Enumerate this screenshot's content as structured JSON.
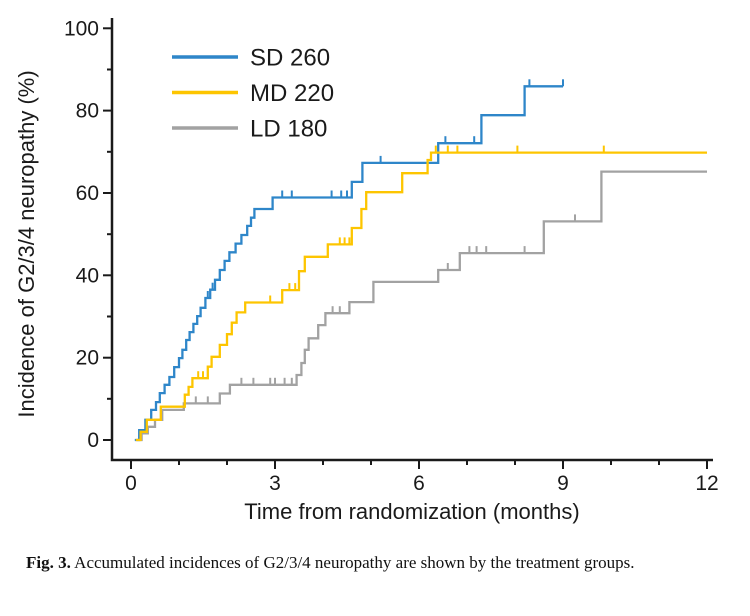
{
  "figure": {
    "caption_label": "Fig. 3.",
    "caption_text": "Accumulated incidences of G2/3/4 neuropathy are shown by the treatment groups."
  },
  "chart_data": {
    "type": "line",
    "subtype": "cumulative-incidence-step",
    "title": "",
    "xlabel": "Time from randomization (months)",
    "ylabel": "Incidence of G2/3/4 neuropathy (%)",
    "xlim": [
      0,
      12
    ],
    "ylim": [
      0,
      100
    ],
    "grid": false,
    "legend_position": "upper-left-inside",
    "x_ticks_major": [
      0,
      3,
      6,
      9,
      12
    ],
    "x_ticks_minor": [
      1,
      2,
      4,
      5,
      7,
      8,
      10,
      11
    ],
    "y_ticks_major": [
      0,
      20,
      40,
      60,
      80,
      100
    ],
    "y_ticks_minor": [
      10,
      30,
      50,
      70,
      90
    ],
    "axis_color": "#1a1a1a",
    "series": [
      {
        "name": "SD 260",
        "color": "#2e86c9",
        "end_t": 9.0,
        "points": [
          [
            0.08,
            0
          ],
          [
            0.17,
            2.4
          ],
          [
            0.3,
            4.9
          ],
          [
            0.42,
            7.3
          ],
          [
            0.52,
            9.2
          ],
          [
            0.6,
            11.4
          ],
          [
            0.7,
            13.4
          ],
          [
            0.8,
            15.3
          ],
          [
            0.9,
            17.7
          ],
          [
            1.0,
            19.9
          ],
          [
            1.07,
            21.9
          ],
          [
            1.15,
            24.3
          ],
          [
            1.22,
            26.2
          ],
          [
            1.3,
            28.2
          ],
          [
            1.38,
            30.1
          ],
          [
            1.45,
            32.1
          ],
          [
            1.55,
            34.5
          ],
          [
            1.65,
            36.5
          ],
          [
            1.75,
            38.9
          ],
          [
            1.85,
            41.3
          ],
          [
            1.95,
            43.5
          ],
          [
            2.05,
            45.6
          ],
          [
            2.18,
            47.7
          ],
          [
            2.3,
            49.8
          ],
          [
            2.42,
            52.0
          ],
          [
            2.5,
            54.0
          ],
          [
            2.57,
            56.1
          ],
          [
            2.95,
            58.9
          ],
          [
            4.6,
            62.7
          ],
          [
            4.82,
            67.3
          ],
          [
            6.4,
            72.1
          ],
          [
            7.3,
            78.9
          ],
          [
            8.2,
            85.9
          ]
        ],
        "censor_marks": [
          [
            1.6,
            34.5
          ],
          [
            1.7,
            36.5
          ],
          [
            3.15,
            58.9
          ],
          [
            3.35,
            58.9
          ],
          [
            4.18,
            58.9
          ],
          [
            4.38,
            58.9
          ],
          [
            4.5,
            58.9
          ],
          [
            5.2,
            67.3
          ],
          [
            6.55,
            72.1
          ],
          [
            7.15,
            72.1
          ],
          [
            8.3,
            85.9
          ],
          [
            9.0,
            85.9
          ]
        ]
      },
      {
        "name": "MD 220",
        "color": "#fdc500",
        "end_t": 12,
        "points": [
          [
            0.1,
            0
          ],
          [
            0.2,
            2.0
          ],
          [
            0.33,
            4.9
          ],
          [
            0.62,
            8.1
          ],
          [
            1.12,
            11.0
          ],
          [
            1.2,
            12.9
          ],
          [
            1.28,
            15.0
          ],
          [
            1.6,
            17.8
          ],
          [
            1.68,
            20.2
          ],
          [
            1.85,
            23.1
          ],
          [
            2.0,
            25.7
          ],
          [
            2.1,
            28.5
          ],
          [
            2.2,
            31.0
          ],
          [
            2.38,
            33.4
          ],
          [
            3.15,
            36.4
          ],
          [
            3.5,
            41.0
          ],
          [
            3.62,
            44.5
          ],
          [
            4.1,
            47.5
          ],
          [
            4.6,
            51.5
          ],
          [
            4.8,
            56.1
          ],
          [
            4.9,
            60.2
          ],
          [
            5.65,
            64.8
          ],
          [
            6.18,
            68.0
          ],
          [
            6.25,
            69.8
          ]
        ],
        "censor_marks": [
          [
            1.4,
            15.0
          ],
          [
            1.5,
            15.0
          ],
          [
            2.9,
            33.4
          ],
          [
            3.3,
            36.4
          ],
          [
            3.42,
            36.4
          ],
          [
            4.35,
            47.5
          ],
          [
            4.45,
            47.5
          ],
          [
            4.55,
            47.5
          ],
          [
            6.35,
            69.8
          ],
          [
            6.6,
            69.8
          ],
          [
            6.8,
            69.8
          ],
          [
            8.05,
            69.8
          ],
          [
            9.85,
            69.8
          ]
        ]
      },
      {
        "name": "LD 180",
        "color": "#a2a2a2",
        "end_t": 12,
        "points": [
          [
            0.12,
            0
          ],
          [
            0.22,
            1.6
          ],
          [
            0.35,
            3.2
          ],
          [
            0.5,
            4.9
          ],
          [
            0.65,
            7.3
          ],
          [
            1.1,
            8.9
          ],
          [
            1.85,
            11.3
          ],
          [
            2.06,
            13.4
          ],
          [
            3.45,
            15.8
          ],
          [
            3.55,
            18.7
          ],
          [
            3.62,
            21.9
          ],
          [
            3.7,
            24.7
          ],
          [
            3.9,
            27.9
          ],
          [
            4.05,
            30.8
          ],
          [
            4.55,
            33.5
          ],
          [
            5.05,
            38.4
          ],
          [
            6.4,
            41.3
          ],
          [
            6.85,
            45.4
          ],
          [
            8.6,
            53.1
          ],
          [
            9.8,
            65.2
          ]
        ],
        "censor_marks": [
          [
            1.35,
            8.9
          ],
          [
            1.6,
            8.9
          ],
          [
            2.3,
            13.4
          ],
          [
            2.55,
            13.4
          ],
          [
            2.9,
            13.4
          ],
          [
            3.0,
            13.4
          ],
          [
            3.2,
            13.4
          ],
          [
            3.35,
            13.4
          ],
          [
            4.2,
            30.8
          ],
          [
            4.35,
            30.8
          ],
          [
            6.6,
            41.3
          ],
          [
            7.05,
            45.4
          ],
          [
            7.2,
            45.4
          ],
          [
            7.4,
            45.4
          ],
          [
            8.2,
            45.4
          ],
          [
            9.25,
            53.1
          ]
        ]
      }
    ]
  }
}
